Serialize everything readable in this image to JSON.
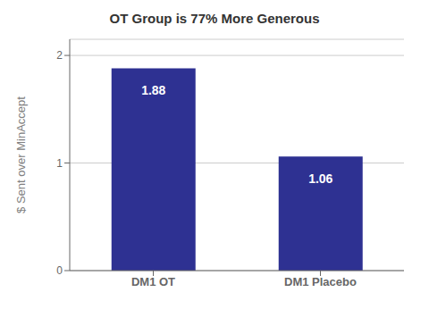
{
  "chart_data": {
    "type": "bar",
    "title": "OT Group is 77% More Generous",
    "categories": [
      "DM1 OT",
      "DM1 Placebo"
    ],
    "values": [
      1.88,
      1.06
    ],
    "color": "#2E3192",
    "ylabel": "$ Sent over MinAccept",
    "ylim": [
      0,
      2.15
    ],
    "yticks": [
      0,
      1,
      2
    ],
    "grid": true,
    "data_labels": true
  }
}
